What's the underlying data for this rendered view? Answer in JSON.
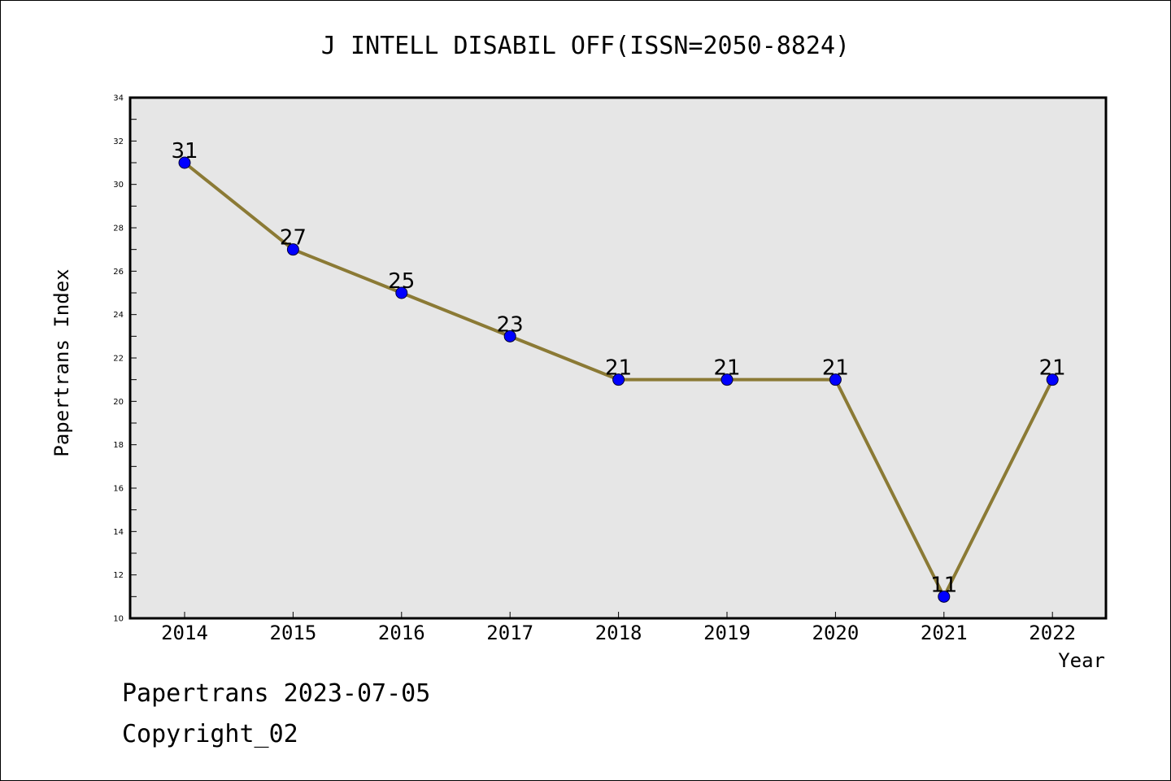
{
  "chart_data": {
    "type": "line",
    "title": "J INTELL DISABIL OFF(ISSN=2050-8824)",
    "xlabel": "Year",
    "ylabel": "Papertrans Index",
    "categories": [
      "2014",
      "2015",
      "2016",
      "2017",
      "2018",
      "2019",
      "2020",
      "2021",
      "2022"
    ],
    "series": [
      {
        "values": [
          31,
          27,
          25,
          23,
          21,
          21,
          21,
          11,
          21
        ]
      }
    ],
    "ylim": [
      10,
      34
    ],
    "yticks": [
      10,
      12,
      14,
      16,
      18,
      20,
      22,
      24,
      26,
      28,
      30,
      32,
      34
    ],
    "grid": false,
    "legend": "none",
    "data_labels": true,
    "colors": {
      "line": "#8b7a35",
      "marker": "#0000ff",
      "plot_background": "#e6e6e6",
      "axis": "#000000"
    }
  },
  "footer": {
    "line1": "Papertrans 2023-07-05",
    "line2": "Copyright_02"
  }
}
